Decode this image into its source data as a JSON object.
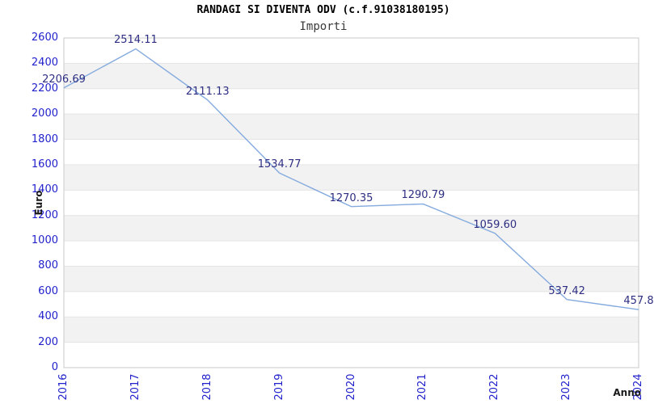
{
  "chart_data": {
    "type": "line",
    "title": "RANDAGI SI DIVENTA ODV (c.f.91038180195)",
    "subtitle": "Importi",
    "xlabel": "Anno",
    "ylabel": "Euro",
    "categories": [
      "2016",
      "2017",
      "2018",
      "2019",
      "2020",
      "2021",
      "2022",
      "2023",
      "2024"
    ],
    "series": [
      {
        "name": "Importi",
        "values": [
          2206.69,
          2514.11,
          2111.13,
          1534.77,
          1270.35,
          1290.79,
          1059.6,
          537.42,
          457.8
        ],
        "point_labels": [
          "2206.69",
          "2514.11",
          "2111.13",
          "1534.77",
          "1270.35",
          "1290.79",
          "1059.60",
          "537.42",
          "457.8"
        ]
      }
    ],
    "ylim": [
      0,
      2600
    ],
    "yticks": [
      "0",
      "200",
      "400",
      "600",
      "800",
      "1000",
      "1200",
      "1400",
      "1600",
      "1800",
      "2000",
      "2200",
      "2400",
      "2600"
    ],
    "grid": "horizontal alternating bands every 200 units, gridlines at each tick",
    "legend": "none",
    "colors": {
      "line": "#84aade",
      "tick_label": "#2222cc",
      "point_label": "#2e2e82",
      "band": "#f2f2f2",
      "gridline": "#e4e4e4",
      "plot_border": "#c9c9c9",
      "title": "#000000",
      "subtitle": "#3a3a3a",
      "axis_title": "#1a1a1a",
      "background": "#ffffff"
    }
  }
}
